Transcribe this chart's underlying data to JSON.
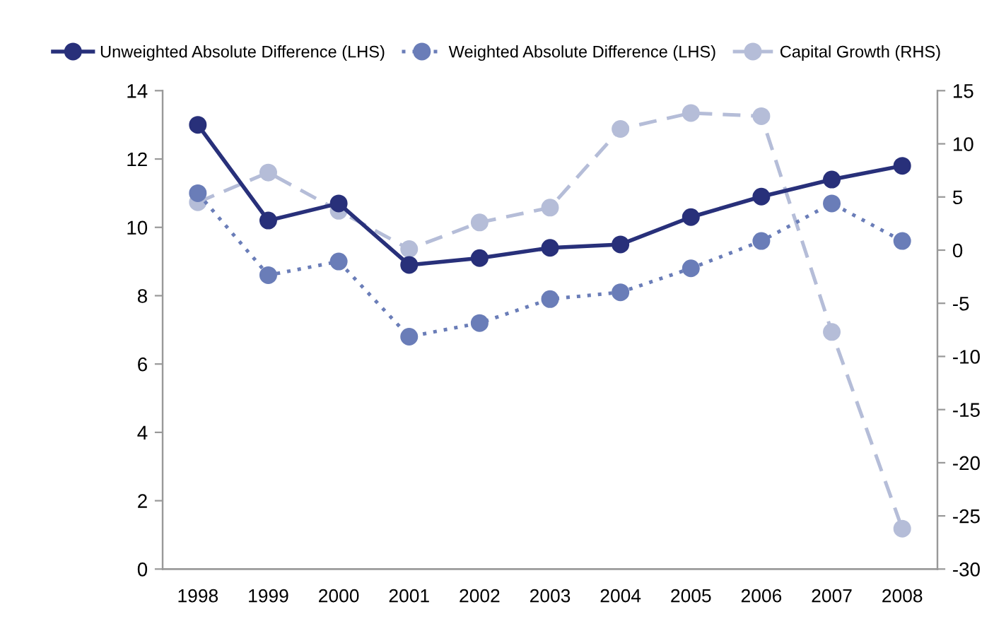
{
  "chart_data": {
    "type": "line",
    "categories": [
      "1998",
      "1999",
      "2000",
      "2001",
      "2002",
      "2003",
      "2004",
      "2005",
      "2006",
      "2007",
      "2008"
    ],
    "series": [
      {
        "name": "Unweighted Absolute Difference (LHS)",
        "color": "#28307a",
        "line_style": "solid",
        "values": [
          13,
          10.2,
          10.7,
          8.9,
          9.1,
          9.4,
          9.5,
          10.3,
          10.9,
          11.4,
          11.8
        ]
      },
      {
        "name": "Weighted Absolute Difference (LHS)",
        "color": "#6a7db8",
        "line_style": "dotted",
        "values": [
          11,
          8.6,
          9,
          6.8,
          7.2,
          7.9,
          8.1,
          8.8,
          9.6,
          10.7,
          9.6
        ]
      },
      {
        "name": "Capital Growth (RHS)",
        "color": "#b5bdd8",
        "line_style": "dashed",
        "axis": "y2",
        "values": [
          4.5,
          7.3,
          3.7,
          0.1,
          2.6,
          4,
          11.4,
          12.9,
          12.6,
          -7.7,
          -26.2
        ]
      }
    ],
    "ylim": [
      0,
      14
    ],
    "yticks": [
      0,
      2,
      4,
      6,
      8,
      10,
      12,
      14
    ],
    "y2lim": [
      -30,
      15
    ],
    "y2ticks": [
      -30,
      -25,
      -20,
      -15,
      -10,
      -5,
      0,
      5,
      10,
      15
    ],
    "marker": "circle",
    "grid": false,
    "legend": "top"
  }
}
